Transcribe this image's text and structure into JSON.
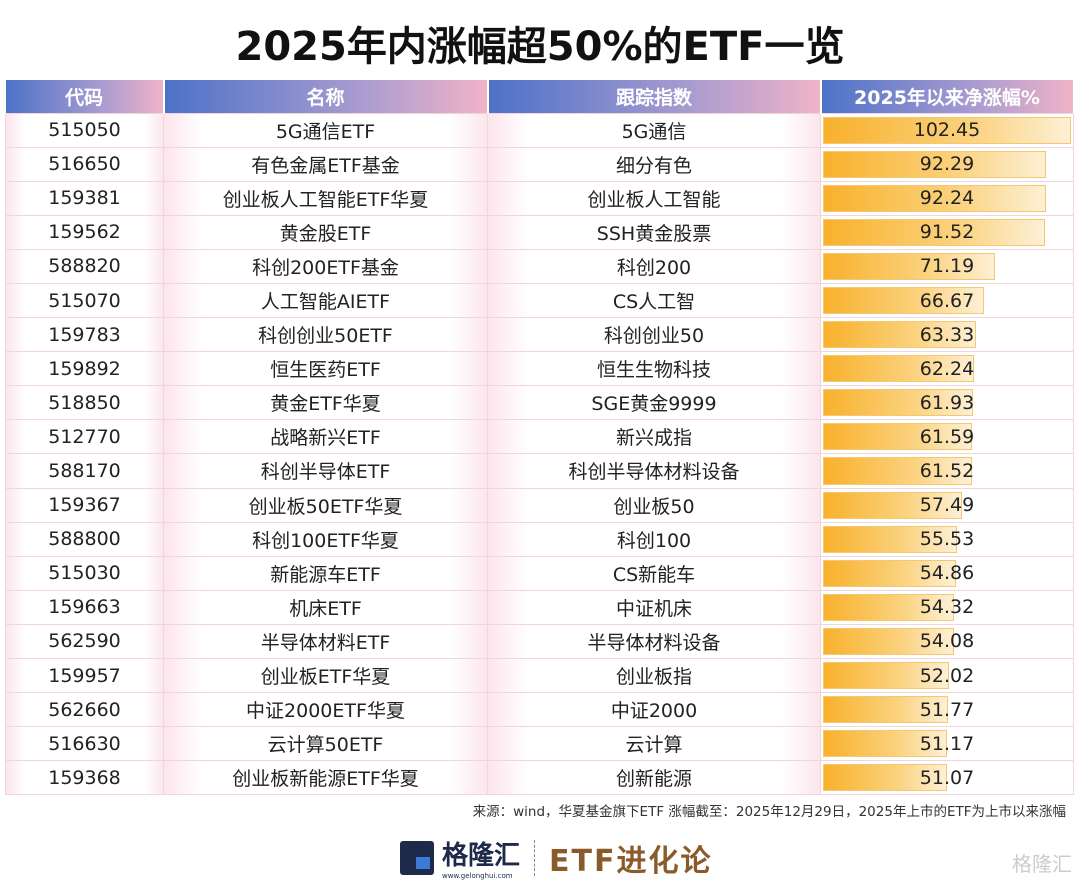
{
  "title": "2025年内涨幅超50%的ETF一览",
  "columns": [
    "代码",
    "名称",
    "跟踪指数",
    "2025年以来净涨幅%"
  ],
  "rows": [
    [
      "515050",
      "5G通信ETF",
      "5G通信",
      "102.45"
    ],
    [
      "516650",
      "有色金属ETF基金",
      "细分有色",
      "92.29"
    ],
    [
      "159381",
      "创业板人工智能ETF华夏",
      "创业板人工智能",
      "92.24"
    ],
    [
      "159562",
      "黄金股ETF",
      "SSH黄金股票",
      "91.52"
    ],
    [
      "588820",
      "科创200ETF基金",
      "科创200",
      "71.19"
    ],
    [
      "515070",
      "人工智能AIETF",
      "CS人工智",
      "66.67"
    ],
    [
      "159783",
      "科创创业50ETF",
      "科创创业50",
      "63.33"
    ],
    [
      "159892",
      "恒生医药ETF",
      "恒生生物科技",
      "62.24"
    ],
    [
      "518850",
      "黄金ETF华夏",
      "SGE黄金9999",
      "61.93"
    ],
    [
      "512770",
      "战略新兴ETF",
      "新兴成指",
      "61.59"
    ],
    [
      "588170",
      "科创半导体ETF",
      "科创半导体材料设备",
      "61.52"
    ],
    [
      "159367",
      "创业板50ETF华夏",
      "创业板50",
      "57.49"
    ],
    [
      "588800",
      "科创100ETF华夏",
      "科创100",
      "55.53"
    ],
    [
      "515030",
      "新能源车ETF",
      "CS新能车",
      "54.86"
    ],
    [
      "159663",
      "机床ETF",
      "中证机床",
      "54.32"
    ],
    [
      "562590",
      "半导体材料ETF",
      "半导体材料设备",
      "54.08"
    ],
    [
      "159957",
      "创业板ETF华夏",
      "创业板指",
      "52.02"
    ],
    [
      "562660",
      "中证2000ETF华夏",
      "中证2000",
      "51.77"
    ],
    [
      "516630",
      "云计算50ETF",
      "云计算",
      "51.17"
    ],
    [
      "159368",
      "创业板新能源ETF华夏",
      "创新能源",
      "51.07"
    ]
  ],
  "note": "来源：wind，华夏基金旗下ETF   涨幅截至：2025年12月29日，2025年上市的ETF为上市以来涨幅",
  "logo": {
    "name": "格隆汇",
    "url": "www.gelonghui.com",
    "slogan": "ETF进化论"
  },
  "watermark": "格隆汇",
  "colors": {
    "bar": "#f8b12c",
    "header_start": "#4d72c8",
    "header_end": "#f0b3c8",
    "slogan": "#8a5a2b"
  }
}
